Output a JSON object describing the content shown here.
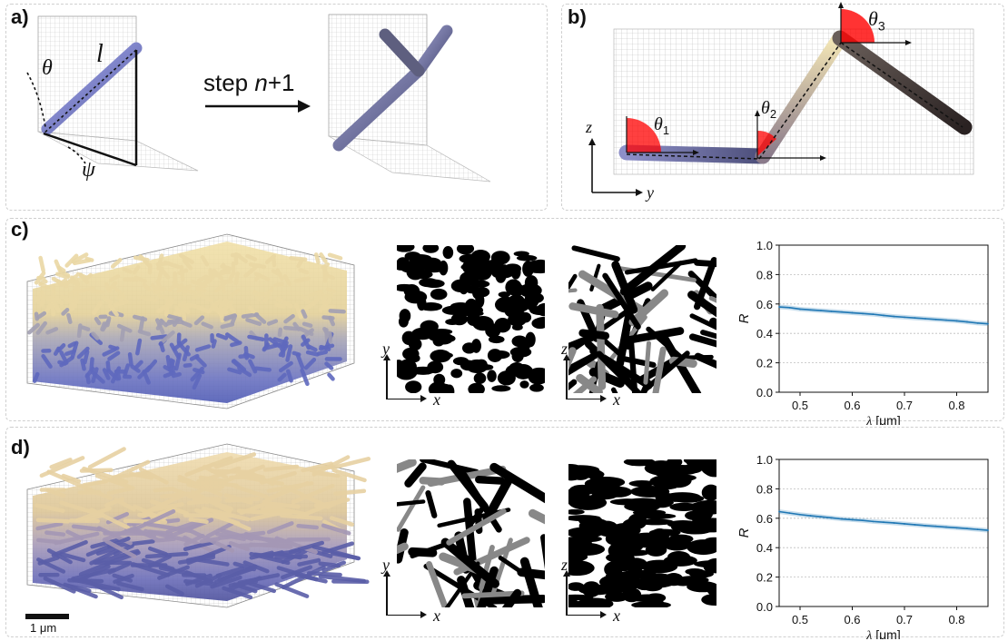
{
  "panels": {
    "a": {
      "label": "a)",
      "symbols": {
        "theta": "θ",
        "length": "l",
        "psi": "ψ"
      },
      "step_prefix": "step ",
      "step_var": "n",
      "step_suffix": "+1"
    },
    "b": {
      "label": "b)",
      "angles": [
        {
          "sym": "θ",
          "sub": "1"
        },
        {
          "sym": "θ",
          "sub": "2"
        },
        {
          "sym": "θ",
          "sub": "3"
        }
      ],
      "axis_z": "z",
      "axis_y": "y"
    },
    "c": {
      "label": "c)",
      "slice_xy": {
        "vert": "y",
        "horiz": "x"
      },
      "slice_xz": {
        "vert": "z",
        "horiz": "x"
      }
    },
    "d": {
      "label": "d)",
      "slice_xy": {
        "vert": "y",
        "horiz": "x"
      },
      "slice_xz": {
        "vert": "z",
        "horiz": "x"
      },
      "scale_bar": "1 μm"
    }
  },
  "colors": {
    "rod_blue": "#7f86cc",
    "rod_cream": "#e9d7a4",
    "rod_dark": "#3c3232",
    "angle_red": "#ff0000",
    "curve_blue": "#1f77b4"
  },
  "chart_data": [
    {
      "type": "line",
      "panel": "c",
      "xlabel_sym": "λ",
      "xlabel_unit": " [μm]",
      "ylabel": "R",
      "xlim": [
        0.46,
        0.86
      ],
      "ylim": [
        0.0,
        1.0
      ],
      "xticks": [
        "0.5",
        "0.6",
        "0.7",
        "0.8"
      ],
      "yticks": [
        "0.0",
        "0.2",
        "0.4",
        "0.6",
        "0.8",
        "1.0"
      ],
      "grid": "horizontal dotted",
      "x": [
        0.46,
        0.48,
        0.5,
        0.52,
        0.54,
        0.56,
        0.58,
        0.6,
        0.62,
        0.64,
        0.66,
        0.68,
        0.7,
        0.72,
        0.74,
        0.76,
        0.78,
        0.8,
        0.82,
        0.84,
        0.86
      ],
      "values": [
        0.58,
        0.575,
        0.565,
        0.56,
        0.555,
        0.55,
        0.545,
        0.54,
        0.535,
        0.53,
        0.522,
        0.515,
        0.51,
        0.505,
        0.5,
        0.495,
        0.49,
        0.485,
        0.478,
        0.47,
        0.465
      ]
    },
    {
      "type": "line",
      "panel": "d",
      "xlabel_sym": "λ",
      "xlabel_unit": " [μm]",
      "ylabel": "R",
      "xlim": [
        0.46,
        0.86
      ],
      "ylim": [
        0.0,
        1.0
      ],
      "xticks": [
        "0.5",
        "0.6",
        "0.7",
        "0.8"
      ],
      "yticks": [
        "0.0",
        "0.2",
        "0.4",
        "0.6",
        "0.8",
        "1.0"
      ],
      "grid": "horizontal dotted",
      "x": [
        0.46,
        0.48,
        0.5,
        0.52,
        0.54,
        0.56,
        0.58,
        0.6,
        0.62,
        0.64,
        0.66,
        0.68,
        0.7,
        0.72,
        0.74,
        0.76,
        0.78,
        0.8,
        0.82,
        0.84,
        0.86
      ],
      "values": [
        0.645,
        0.635,
        0.625,
        0.617,
        0.61,
        0.603,
        0.595,
        0.59,
        0.585,
        0.578,
        0.573,
        0.568,
        0.562,
        0.556,
        0.55,
        0.545,
        0.54,
        0.535,
        0.53,
        0.524,
        0.518
      ]
    }
  ]
}
